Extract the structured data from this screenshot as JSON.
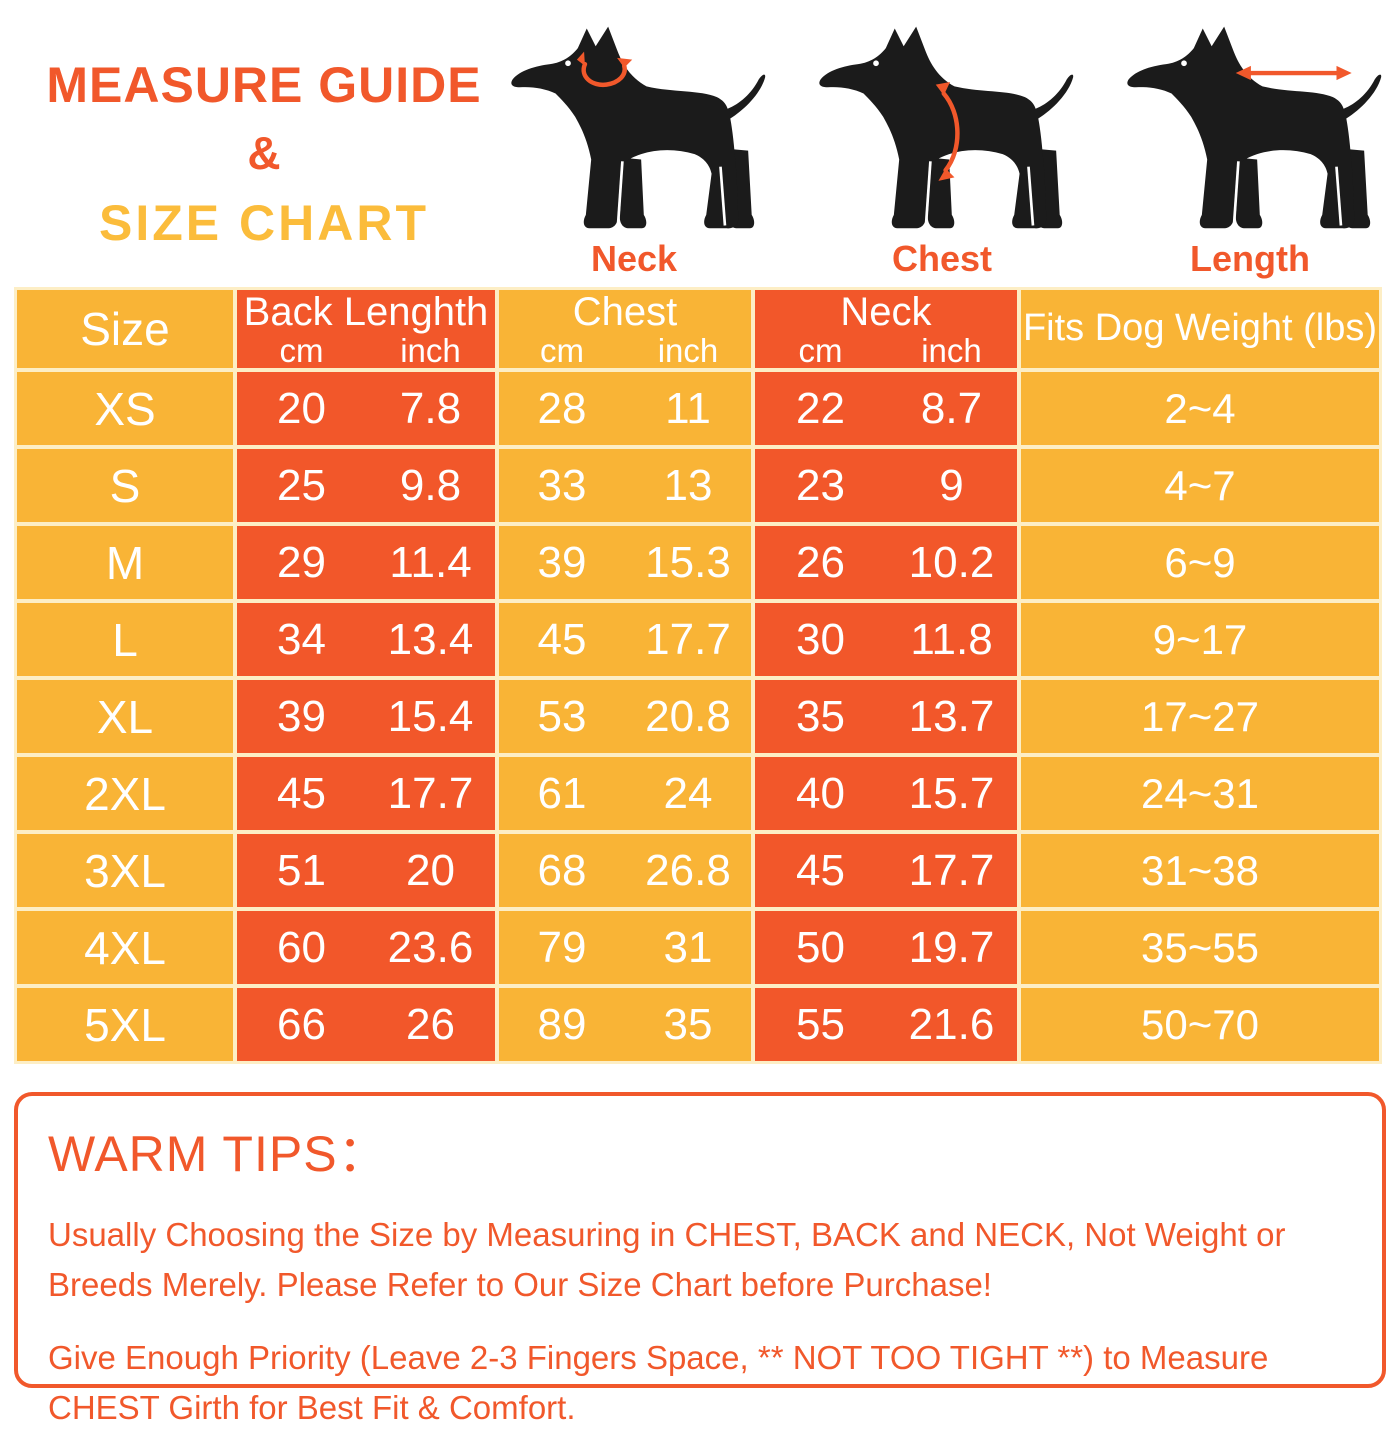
{
  "header": {
    "title_line1": "MEASURE GUIDE",
    "ampersand": "&",
    "title_line2": "SIZE CHART"
  },
  "measure_guide": {
    "labels": [
      "Neck",
      "Chest",
      "Length"
    ]
  },
  "colors": {
    "accent_orange": "#F1582B",
    "table_orange": "#F2572A",
    "table_yellow": "#F9B436",
    "title_gold": "#FBBC3B",
    "grid_line": "#FDEEC5",
    "dog_black": "#1B1B1B",
    "text_white": "#FFFFFF"
  },
  "table": {
    "columns": [
      {
        "label": "Size"
      },
      {
        "label": "Back Lenghth",
        "units": [
          "cm",
          "inch"
        ]
      },
      {
        "label": "Chest",
        "units": [
          "cm",
          "inch"
        ]
      },
      {
        "label": "Neck",
        "units": [
          "cm",
          "inch"
        ]
      },
      {
        "label": "Fits Dog Weight (lbs)"
      }
    ],
    "rows": [
      {
        "size": "XS",
        "back": [
          "20",
          "7.8"
        ],
        "chest": [
          "28",
          "11"
        ],
        "neck": [
          "22",
          "8.7"
        ],
        "weight": "2~4"
      },
      {
        "size": "S",
        "back": [
          "25",
          "9.8"
        ],
        "chest": [
          "33",
          "13"
        ],
        "neck": [
          "23",
          "9"
        ],
        "weight": "4~7"
      },
      {
        "size": "M",
        "back": [
          "29",
          "11.4"
        ],
        "chest": [
          "39",
          "15.3"
        ],
        "neck": [
          "26",
          "10.2"
        ],
        "weight": "6~9"
      },
      {
        "size": "L",
        "back": [
          "34",
          "13.4"
        ],
        "chest": [
          "45",
          "17.7"
        ],
        "neck": [
          "30",
          "11.8"
        ],
        "weight": "9~17"
      },
      {
        "size": "XL",
        "back": [
          "39",
          "15.4"
        ],
        "chest": [
          "53",
          "20.8"
        ],
        "neck": [
          "35",
          "13.7"
        ],
        "weight": "17~27"
      },
      {
        "size": "2XL",
        "back": [
          "45",
          "17.7"
        ],
        "chest": [
          "61",
          "24"
        ],
        "neck": [
          "40",
          "15.7"
        ],
        "weight": "24~31"
      },
      {
        "size": "3XL",
        "back": [
          "51",
          "20"
        ],
        "chest": [
          "68",
          "26.8"
        ],
        "neck": [
          "45",
          "17.7"
        ],
        "weight": "31~38"
      },
      {
        "size": "4XL",
        "back": [
          "60",
          "23.6"
        ],
        "chest": [
          "79",
          "31"
        ],
        "neck": [
          "50",
          "19.7"
        ],
        "weight": "35~55"
      },
      {
        "size": "5XL",
        "back": [
          "66",
          "26"
        ],
        "chest": [
          "89",
          "35"
        ],
        "neck": [
          "55",
          "21.6"
        ],
        "weight": "50~70"
      }
    ]
  },
  "chart_data": {
    "type": "table",
    "title": "MEASURE GUIDE & SIZE CHART",
    "columns": [
      "Size",
      "Back Lenghth cm",
      "Back Lenghth inch",
      "Chest cm",
      "Chest inch",
      "Neck cm",
      "Neck inch",
      "Fits Dog Weight (lbs)"
    ],
    "rows": [
      [
        "XS",
        20,
        7.8,
        28,
        11,
        22,
        8.7,
        "2~4"
      ],
      [
        "S",
        25,
        9.8,
        33,
        13,
        23,
        9,
        "4~7"
      ],
      [
        "M",
        29,
        11.4,
        39,
        15.3,
        26,
        10.2,
        "6~9"
      ],
      [
        "L",
        34,
        13.4,
        45,
        17.7,
        30,
        11.8,
        "9~17"
      ],
      [
        "XL",
        39,
        15.4,
        53,
        20.8,
        35,
        13.7,
        "17~27"
      ],
      [
        "2XL",
        45,
        17.7,
        61,
        24,
        40,
        15.7,
        "24~31"
      ],
      [
        "3XL",
        51,
        20,
        68,
        26.8,
        45,
        17.7,
        "31~38"
      ],
      [
        "4XL",
        60,
        23.6,
        79,
        31,
        50,
        19.7,
        "35~55"
      ],
      [
        "5XL",
        66,
        26,
        89,
        35,
        55,
        21.6,
        "50~70"
      ]
    ]
  },
  "warm_tips": {
    "title": "WARM TIPS：",
    "paragraphs": [
      "Usually Choosing the Size by Measuring in CHEST, BACK and NECK, Not Weight or Breeds Merely. Please Refer to Our Size Chart before Purchase!",
      "Give Enough Priority (Leave 2-3 Fingers Space, ** NOT TOO TIGHT **) to Measure CHEST Girth for Best Fit & Comfort."
    ]
  }
}
